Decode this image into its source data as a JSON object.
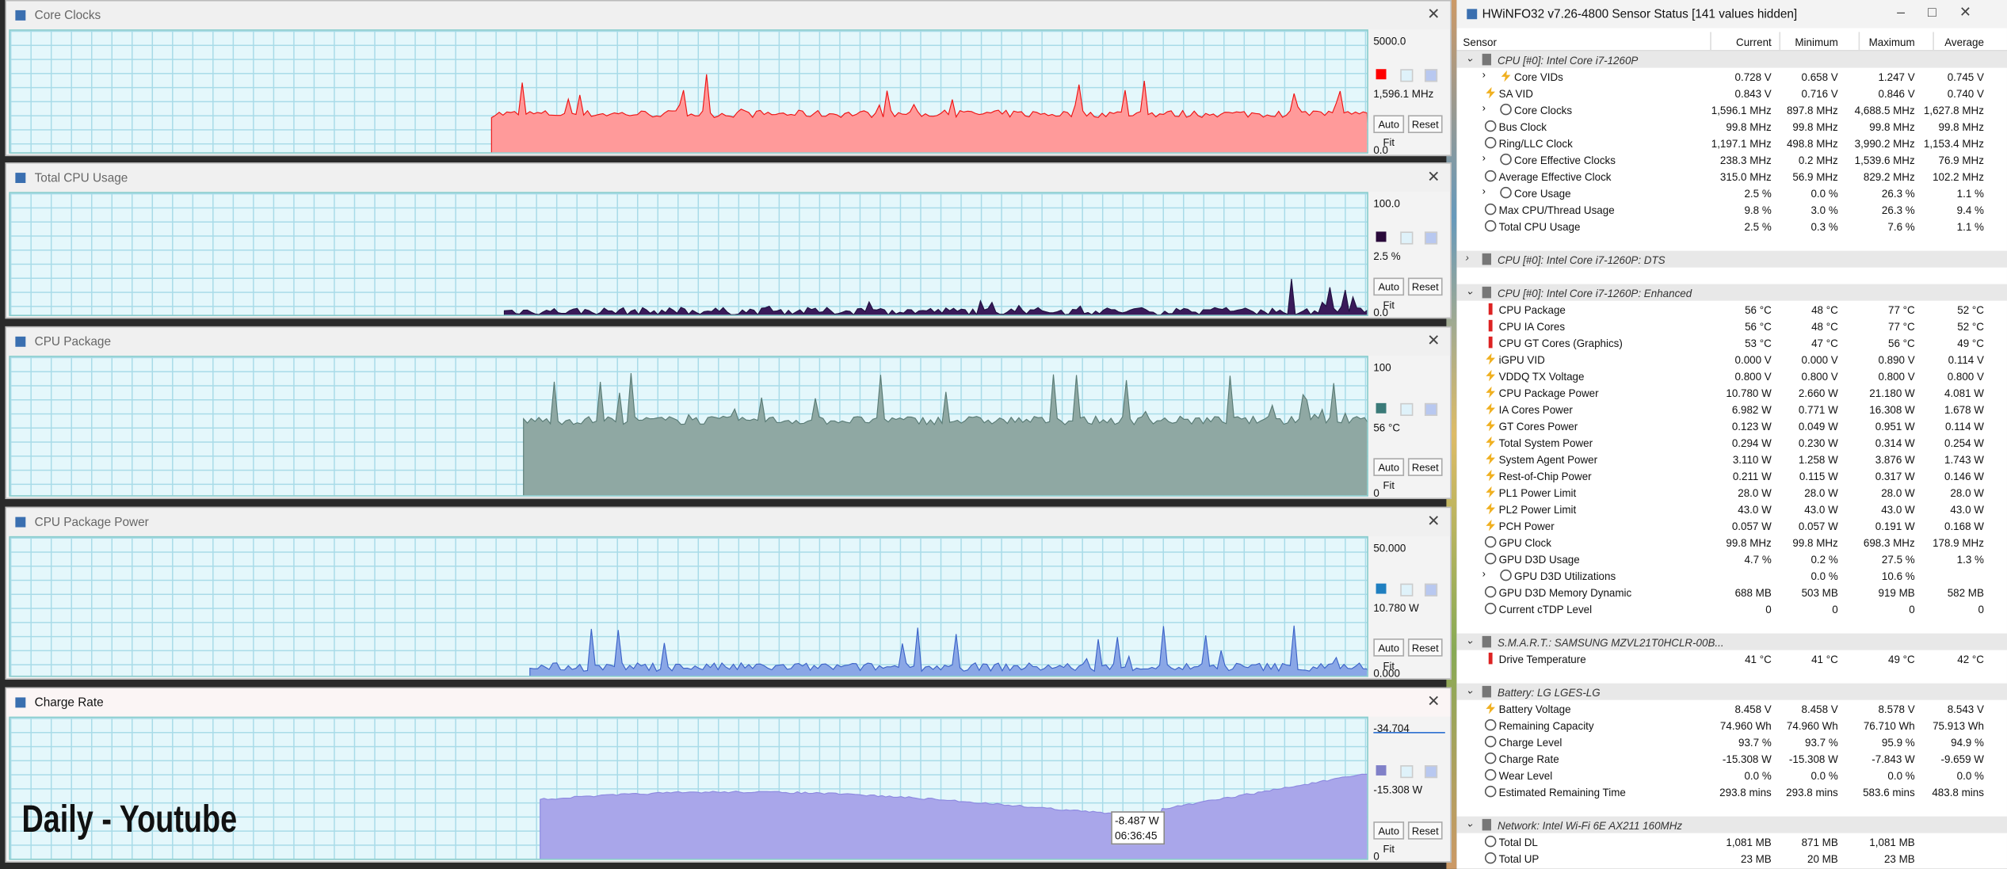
{
  "windows": [
    {
      "title": "Core Clocks",
      "max": "5000.0",
      "current": "1,596.1 MHz",
      "min": "0.0",
      "color": "#ff0000"
    },
    {
      "title": "Total CPU Usage",
      "max": "100.0",
      "current": "2.5 %",
      "min": "0.0",
      "color": "#2a0a3a"
    },
    {
      "title": "CPU Package",
      "max": "100",
      "current": "56 °C",
      "min": "0",
      "color": "#3a7a78"
    },
    {
      "title": "CPU Package Power",
      "max": "50.000",
      "current": "10.780 W",
      "min": "0.000",
      "color": "#1f7fc0"
    },
    {
      "title": "Charge Rate",
      "max": "-34.704",
      "current": "-15.308 W",
      "min": "0",
      "color": "#8080c8"
    }
  ],
  "buttons": [
    "Auto Fit",
    "Reset"
  ],
  "tooltip": {
    "value": "-8.487 W",
    "time": "06:36:45"
  },
  "overlay": "Daily - Youtube",
  "sensors": {
    "title": "HWiNFO32 v7.26-4800 Sensor Status [141 values hidden]",
    "columns": [
      "Sensor",
      "Current",
      "Minimum",
      "Maximum",
      "Average"
    ],
    "groups": [
      {
        "name": "CPU [#0]: Intel Core i7-1260P",
        "rows": [
          {
            "label": "Core VIDs",
            "current": "0.728 V",
            "min": "0.658 V",
            "max": "1.247 V",
            "avg": "0.745 V",
            "expand": true,
            "icon": "bolt"
          },
          {
            "label": "SA VID",
            "current": "0.843 V",
            "min": "0.716 V",
            "max": "0.846 V",
            "avg": "0.740 V",
            "icon": "bolt"
          },
          {
            "label": "Core Clocks",
            "current": "1,596.1 MHz",
            "min": "897.8 MHz",
            "max": "4,688.5 MHz",
            "avg": "1,627.8 MHz",
            "expand": true,
            "icon": "clock"
          },
          {
            "label": "Bus Clock",
            "current": "99.8 MHz",
            "min": "99.8 MHz",
            "max": "99.8 MHz",
            "avg": "99.8 MHz",
            "icon": "clock"
          },
          {
            "label": "Ring/LLC Clock",
            "current": "1,197.1 MHz",
            "min": "498.8 MHz",
            "max": "3,990.2 MHz",
            "avg": "1,153.4 MHz",
            "icon": "clock"
          },
          {
            "label": "Core Effective Clocks",
            "current": "238.3 MHz",
            "min": "0.2 MHz",
            "max": "1,539.6 MHz",
            "avg": "76.9 MHz",
            "expand": true,
            "icon": "clock"
          },
          {
            "label": "Average Effective Clock",
            "current": "315.0 MHz",
            "min": "56.9 MHz",
            "max": "829.2 MHz",
            "avg": "102.2 MHz",
            "icon": "clock"
          },
          {
            "label": "Core Usage",
            "current": "2.5 %",
            "min": "0.0 %",
            "max": "26.3 %",
            "avg": "1.1 %",
            "expand": true,
            "icon": "clock"
          },
          {
            "label": "Max CPU/Thread Usage",
            "current": "9.8 %",
            "min": "3.0 %",
            "max": "26.3 %",
            "avg": "9.4 %",
            "icon": "clock"
          },
          {
            "label": "Total CPU Usage",
            "current": "2.5 %",
            "min": "0.3 %",
            "max": "7.6 %",
            "avg": "1.1 %",
            "icon": "clock"
          }
        ]
      },
      {
        "name": "CPU [#0]: Intel Core i7-1260P: DTS",
        "collapsed": true,
        "rows": []
      },
      {
        "name": "CPU [#0]: Intel Core i7-1260P: Enhanced",
        "rows": [
          {
            "label": "CPU Package",
            "current": "56 °C",
            "min": "48 °C",
            "max": "77 °C",
            "avg": "52 °C",
            "icon": "temp"
          },
          {
            "label": "CPU IA Cores",
            "current": "56 °C",
            "min": "48 °C",
            "max": "77 °C",
            "avg": "52 °C",
            "icon": "temp"
          },
          {
            "label": "CPU GT Cores (Graphics)",
            "current": "53 °C",
            "min": "47 °C",
            "max": "56 °C",
            "avg": "49 °C",
            "icon": "temp"
          },
          {
            "label": "iGPU VID",
            "current": "0.000 V",
            "min": "0.000 V",
            "max": "0.890 V",
            "avg": "0.114 V",
            "icon": "bolt"
          },
          {
            "label": "VDDQ TX Voltage",
            "current": "0.800 V",
            "min": "0.800 V",
            "max": "0.800 V",
            "avg": "0.800 V",
            "icon": "bolt"
          },
          {
            "label": "CPU Package Power",
            "current": "10.780 W",
            "min": "2.660 W",
            "max": "21.180 W",
            "avg": "4.081 W",
            "icon": "bolt"
          },
          {
            "label": "IA Cores Power",
            "current": "6.982 W",
            "min": "0.771 W",
            "max": "16.308 W",
            "avg": "1.678 W",
            "icon": "bolt"
          },
          {
            "label": "GT Cores Power",
            "current": "0.123 W",
            "min": "0.049 W",
            "max": "0.951 W",
            "avg": "0.114 W",
            "icon": "bolt"
          },
          {
            "label": "Total System Power",
            "current": "0.294 W",
            "min": "0.230 W",
            "max": "0.314 W",
            "avg": "0.254 W",
            "icon": "bolt"
          },
          {
            "label": "System Agent Power",
            "current": "3.110 W",
            "min": "1.258 W",
            "max": "3.876 W",
            "avg": "1.743 W",
            "icon": "bolt"
          },
          {
            "label": "Rest-of-Chip Power",
            "current": "0.211 W",
            "min": "0.115 W",
            "max": "0.317 W",
            "avg": "0.146 W",
            "icon": "bolt"
          },
          {
            "label": "PL1 Power Limit",
            "current": "28.0 W",
            "min": "28.0 W",
            "max": "28.0 W",
            "avg": "28.0 W",
            "icon": "bolt"
          },
          {
            "label": "PL2 Power Limit",
            "current": "43.0 W",
            "min": "43.0 W",
            "max": "43.0 W",
            "avg": "43.0 W",
            "icon": "bolt"
          },
          {
            "label": "PCH Power",
            "current": "0.057 W",
            "min": "0.057 W",
            "max": "0.191 W",
            "avg": "0.168 W",
            "icon": "bolt"
          },
          {
            "label": "GPU Clock",
            "current": "99.8 MHz",
            "min": "99.8 MHz",
            "max": "698.3 MHz",
            "avg": "178.9 MHz",
            "icon": "clock"
          },
          {
            "label": "GPU D3D Usage",
            "current": "4.7 %",
            "min": "0.2 %",
            "max": "27.5 %",
            "avg": "1.3 %",
            "icon": "clock"
          },
          {
            "label": "GPU D3D Utilizations",
            "min": "0.0 %",
            "max": "10.6 %",
            "expand": true,
            "icon": "clock"
          },
          {
            "label": "GPU D3D Memory Dynamic",
            "current": "688 MB",
            "min": "503 MB",
            "max": "919 MB",
            "avg": "582 MB",
            "icon": "clock"
          },
          {
            "label": "Current cTDP Level",
            "current": "0",
            "min": "0",
            "max": "0",
            "avg": "0",
            "icon": "clock"
          }
        ]
      },
      {
        "name": "S.M.A.R.T.: SAMSUNG MZVL21T0HCLR-00B...",
        "rows": [
          {
            "label": "Drive Temperature",
            "current": "41 °C",
            "min": "41 °C",
            "max": "49 °C",
            "avg": "42 °C",
            "icon": "temp"
          }
        ]
      },
      {
        "name": "Battery:  LG  LGES-LG",
        "rows": [
          {
            "label": "Battery Voltage",
            "current": "8.458 V",
            "min": "8.458 V",
            "max": "8.578 V",
            "avg": "8.543 V",
            "icon": "bolt"
          },
          {
            "label": "Remaining Capacity",
            "current": "74.960 Wh",
            "min": "74.960 Wh",
            "max": "76.710 Wh",
            "avg": "75.913 Wh",
            "icon": "clock"
          },
          {
            "label": "Charge Level",
            "current": "93.7 %",
            "min": "93.7 %",
            "max": "95.9 %",
            "avg": "94.9 %",
            "icon": "clock"
          },
          {
            "label": "Charge Rate",
            "current": "-15.308 W",
            "min": "-15.308 W",
            "max": "-7.843 W",
            "avg": "-9.659 W",
            "icon": "clock"
          },
          {
            "label": "Wear Level",
            "current": "0.0 %",
            "min": "0.0 %",
            "max": "0.0 %",
            "avg": "0.0 %",
            "icon": "clock"
          },
          {
            "label": "Estimated Remaining Time",
            "current": "293.8 mins",
            "min": "293.8 mins",
            "max": "583.6 mins",
            "avg": "483.8 mins",
            "icon": "clock"
          }
        ]
      },
      {
        "name": "Network: Intel Wi-Fi 6E AX211 160MHz",
        "rows": [
          {
            "label": "Total DL",
            "current": "1,081 MB",
            "min": "871 MB",
            "max": "1,081 MB",
            "icon": "clock"
          },
          {
            "label": "Total UP",
            "current": "23 MB",
            "min": "20 MB",
            "max": "23 MB",
            "icon": "clock"
          }
        ]
      }
    ]
  }
}
